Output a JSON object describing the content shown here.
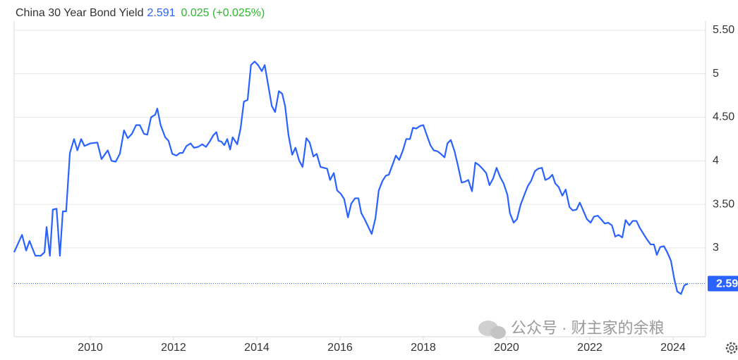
{
  "chart_data": {
    "type": "line",
    "title": "China 30 Year Bond Yield",
    "price": "2.591",
    "change": "0.025 (+0.025%)",
    "watermark": "公众号 · 财主家的余粮",
    "current": {
      "value": 2.591,
      "label": "2.59"
    },
    "xlim": [
      2008.17,
      2024.78
    ],
    "xticks": [
      2010,
      2012,
      2014,
      2016,
      2018,
      2020,
      2022,
      2024
    ],
    "ylim": [
      2,
      5.6
    ],
    "yticks": [
      3,
      {
        "value": 3.5,
        "label": "3.50"
      },
      4,
      {
        "value": 4.5,
        "label": "4.50"
      },
      5,
      {
        "value": 5.5,
        "label": "5.50"
      }
    ],
    "grid": true,
    "x": [
      2008.17,
      2008.36,
      2008.46,
      2008.54,
      2008.68,
      2008.81,
      2008.9,
      2008.95,
      2009.03,
      2009.1,
      2009.19,
      2009.27,
      2009.34,
      2009.42,
      2009.51,
      2009.61,
      2009.69,
      2009.78,
      2009.86,
      2010.0,
      2010.17,
      2010.27,
      2010.42,
      2010.51,
      2010.61,
      2010.71,
      2010.81,
      2010.9,
      2011.0,
      2011.1,
      2011.19,
      2011.29,
      2011.37,
      2011.46,
      2011.56,
      2011.61,
      2011.69,
      2011.8,
      2011.88,
      2011.97,
      2012.07,
      2012.15,
      2012.22,
      2012.31,
      2012.41,
      2012.49,
      2012.59,
      2012.69,
      2012.78,
      2012.88,
      2012.95,
      2013.03,
      2013.08,
      2013.15,
      2013.22,
      2013.29,
      2013.36,
      2013.42,
      2013.53,
      2013.61,
      2013.69,
      2013.78,
      2013.86,
      2013.95,
      2014.03,
      2014.12,
      2014.19,
      2014.27,
      2014.36,
      2014.44,
      2014.53,
      2014.61,
      2014.68,
      2014.76,
      2014.85,
      2014.93,
      2015.02,
      2015.1,
      2015.19,
      2015.27,
      2015.36,
      2015.44,
      2015.53,
      2015.61,
      2015.69,
      2015.76,
      2015.85,
      2015.93,
      2016.02,
      2016.1,
      2016.19,
      2016.27,
      2016.36,
      2016.44,
      2016.51,
      2016.59,
      2016.68,
      2016.76,
      2016.85,
      2016.93,
      2017.02,
      2017.1,
      2017.17,
      2017.25,
      2017.34,
      2017.42,
      2017.51,
      2017.59,
      2017.68,
      2017.75,
      2017.83,
      2017.92,
      2018.0,
      2018.08,
      2018.17,
      2018.25,
      2018.34,
      2018.42,
      2018.51,
      2018.58,
      2018.66,
      2018.75,
      2018.83,
      2018.92,
      2019.0,
      2019.08,
      2019.17,
      2019.25,
      2019.34,
      2019.42,
      2019.51,
      2019.59,
      2019.68,
      2019.76,
      2019.85,
      2019.93,
      2020.02,
      2020.08,
      2020.17,
      2020.25,
      2020.34,
      2020.42,
      2020.51,
      2020.59,
      2020.68,
      2020.76,
      2020.85,
      2020.93,
      2021.02,
      2021.1,
      2021.17,
      2021.25,
      2021.34,
      2021.42,
      2021.51,
      2021.59,
      2021.68,
      2021.76,
      2021.85,
      2021.93,
      2022.02,
      2022.1,
      2022.19,
      2022.27,
      2022.36,
      2022.44,
      2022.53,
      2022.61,
      2022.69,
      2022.78,
      2022.86,
      2022.95,
      2023.03,
      2023.12,
      2023.2,
      2023.29,
      2023.37,
      2023.46,
      2023.54,
      2023.61,
      2023.69,
      2023.78,
      2023.86,
      2023.95,
      2024.03,
      2024.1,
      2024.19,
      2024.27,
      2024.36
    ],
    "series": [
      {
        "color": "#2962ff",
        "values": [
          2.95,
          3.15,
          2.97,
          3.08,
          2.91,
          2.91,
          2.95,
          3.24,
          2.91,
          3.44,
          3.45,
          2.91,
          3.42,
          3.42,
          4.09,
          4.25,
          4.12,
          4.25,
          4.17,
          4.2,
          4.21,
          4.02,
          4.12,
          4.0,
          3.99,
          4.08,
          4.35,
          4.26,
          4.31,
          4.41,
          4.41,
          4.31,
          4.3,
          4.5,
          4.53,
          4.6,
          4.41,
          4.27,
          4.23,
          4.08,
          4.06,
          4.09,
          4.09,
          4.17,
          4.2,
          4.15,
          4.16,
          4.19,
          4.16,
          4.23,
          4.29,
          4.33,
          4.23,
          4.22,
          4.18,
          4.25,
          4.13,
          4.27,
          4.19,
          4.37,
          4.68,
          4.7,
          5.1,
          5.14,
          5.1,
          5.03,
          5.1,
          4.88,
          4.63,
          4.56,
          4.8,
          4.77,
          4.63,
          4.3,
          4.07,
          4.15,
          4.0,
          3.93,
          4.26,
          4.21,
          4.05,
          4.08,
          3.93,
          3.92,
          3.91,
          3.78,
          3.86,
          3.66,
          3.62,
          3.56,
          3.35,
          3.51,
          3.57,
          3.57,
          3.4,
          3.33,
          3.24,
          3.16,
          3.34,
          3.66,
          3.77,
          3.83,
          3.84,
          3.94,
          4.06,
          4.01,
          4.12,
          4.25,
          4.25,
          4.38,
          4.37,
          4.4,
          4.41,
          4.3,
          4.18,
          4.12,
          4.11,
          4.08,
          4.04,
          4.2,
          4.24,
          4.11,
          3.95,
          3.75,
          3.76,
          3.78,
          3.65,
          3.98,
          3.95,
          3.91,
          3.86,
          3.72,
          3.8,
          3.92,
          3.81,
          3.74,
          3.61,
          3.4,
          3.29,
          3.33,
          3.5,
          3.6,
          3.71,
          3.77,
          3.88,
          3.91,
          3.92,
          3.78,
          3.8,
          3.84,
          3.74,
          3.7,
          3.6,
          3.67,
          3.47,
          3.43,
          3.44,
          3.52,
          3.42,
          3.33,
          3.29,
          3.36,
          3.37,
          3.33,
          3.28,
          3.29,
          3.26,
          3.13,
          3.15,
          3.12,
          3.32,
          3.26,
          3.31,
          3.31,
          3.23,
          3.16,
          3.1,
          3.04,
          3.04,
          2.92,
          3.01,
          3.02,
          2.95,
          2.85,
          2.64,
          2.5,
          2.47,
          2.57,
          2.59
        ]
      }
    ]
  }
}
